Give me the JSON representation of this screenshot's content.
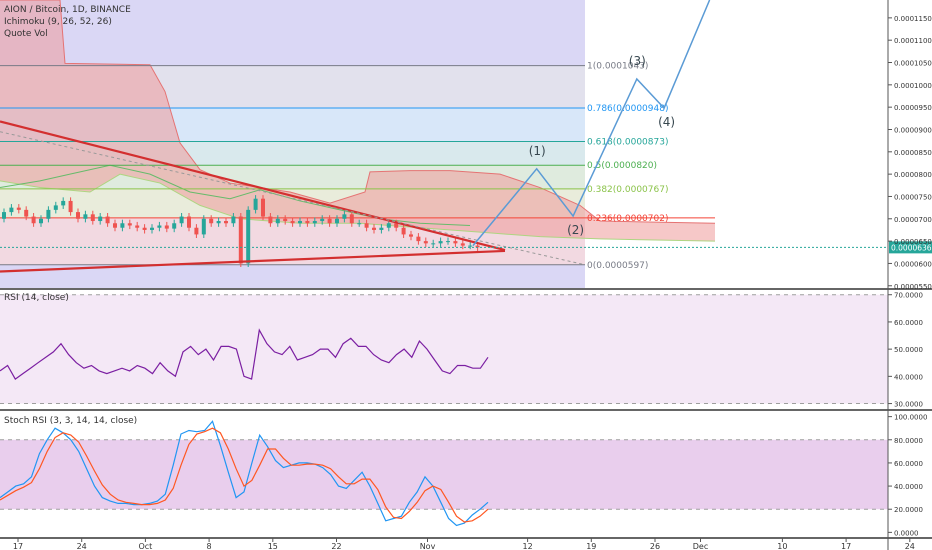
{
  "legend": {
    "symbol_line": "AION / Bitcoin, 1D, BINANCE",
    "indicator_1": "Ichimoku (9, 26, 52, 26)",
    "indicator_2": "Quote Vol"
  },
  "rsi_pane": {
    "title": "RSI (14, close)"
  },
  "stoch_pane": {
    "title": "Stoch RSI (3, 3, 14, 14, close)"
  },
  "colors": {
    "up_candle": "#26a69a",
    "down_candle": "#ef5350",
    "trendline": "#d32f2f",
    "projection": "#5b9bd5",
    "cloud_green": "#a5d6a7",
    "cloud_red": "#ef9a9a",
    "rsi": "#7b1fa2",
    "stoch_k": "#2196f3",
    "stoch_d": "#ff5722",
    "purple_band": "#b39ddb"
  },
  "chart_data": [
    {
      "type": "candlestick",
      "title": "AION / Bitcoin, 1D, BINANCE",
      "x_ticks": [
        "17",
        "24",
        "Oct",
        "8",
        "15",
        "22",
        "Nov",
        "12",
        "19",
        "26",
        "Dec",
        "10",
        "17",
        "24"
      ],
      "y_ticks": [
        "0.0001150",
        "0.0001100",
        "0.0001050",
        "0.0001000",
        "0.0000950",
        "0.0000900",
        "0.0000850",
        "0.0000800",
        "0.0000750",
        "0.0000700",
        "0.0000650",
        "0.0000600",
        "0.0000550"
      ],
      "ylim": [
        5.45e-05,
        0.000119
      ],
      "last_price_label": "0.0000636",
      "fib_levels": [
        {
          "ratio": "1",
          "price": 0.0001043,
          "label": "1(0.0001043)",
          "color": "#787b86"
        },
        {
          "ratio": "0.786",
          "price": 9.48e-05,
          "label": "0.786(0.0000948)",
          "color": "#2196f3"
        },
        {
          "ratio": "0.618",
          "price": 8.73e-05,
          "label": "0.618(0.0000873)",
          "color": "#26a69a"
        },
        {
          "ratio": "0.5",
          "price": 8.2e-05,
          "label": "0.5(0.0000820)",
          "color": "#4caf50"
        },
        {
          "ratio": "0.382",
          "price": 7.67e-05,
          "label": "0.382(0.0000767)",
          "color": "#8bc34a"
        },
        {
          "ratio": "0.236",
          "price": 7.02e-05,
          "label": "0.236(0.0000702)",
          "color": "#f44336"
        },
        {
          "ratio": "0",
          "price": 5.97e-05,
          "label": "0(0.0000597)",
          "color": "#787b86"
        }
      ],
      "wave_labels": [
        "(1)",
        "(2)",
        "(3)",
        "(4)"
      ],
      "wave_projection": [
        {
          "date": "Nov 5",
          "price": 6.4e-05
        },
        {
          "date": "Nov 12",
          "price": 8.12e-05
        },
        {
          "date": "Nov 16",
          "price": 7.06e-05
        },
        {
          "date": "Nov 23",
          "price": 0.0001013
        },
        {
          "date": "Nov 26",
          "price": 9.48e-05
        },
        {
          "date": "Dec 1",
          "price": 0.000119
        }
      ]
    },
    {
      "type": "line",
      "title": "RSI (14, close)",
      "y_ticks": [
        "70.0000",
        "60.0000",
        "50.0000",
        "40.0000",
        "30.0000"
      ],
      "ylim": [
        28,
        71
      ],
      "values": [
        42,
        44,
        39,
        41,
        43,
        45,
        47,
        49,
        52,
        48,
        45,
        43,
        44,
        42,
        41,
        42,
        43,
        42,
        44,
        43,
        41,
        45,
        42,
        40,
        49,
        51,
        48,
        50,
        46,
        51,
        51,
        50,
        40,
        39,
        57,
        52,
        49,
        48,
        51,
        46,
        47,
        48,
        50,
        50,
        47,
        52,
        54,
        51,
        51,
        48,
        46,
        45,
        48,
        50,
        47,
        53,
        50,
        46,
        42,
        41,
        44,
        44,
        43,
        43,
        47
      ]
    },
    {
      "type": "line",
      "title": "Stoch RSI (3, 3, 14, 14, close)",
      "y_ticks": [
        "100.0000",
        "80.0000",
        "60.0000",
        "40.0000",
        "20.0000",
        "0.0000"
      ],
      "ylim": [
        -4,
        104
      ],
      "band": [
        20,
        80
      ],
      "series": [
        {
          "name": "K",
          "values": [
            30,
            35,
            40,
            42,
            48,
            68,
            80,
            90,
            86,
            80,
            70,
            55,
            40,
            30,
            27,
            25,
            25,
            24,
            24,
            25,
            27,
            33,
            58,
            85,
            88,
            87,
            88,
            96,
            75,
            52,
            30,
            35,
            60,
            84,
            74,
            62,
            56,
            58,
            60,
            60,
            59,
            56,
            50,
            40,
            38,
            45,
            52,
            40,
            25,
            10,
            12,
            14,
            26,
            35,
            48,
            40,
            26,
            12,
            6,
            8,
            15,
            20,
            26
          ]
        },
        {
          "name": "D",
          "values": [
            28,
            32,
            36,
            39,
            43,
            55,
            70,
            82,
            86,
            84,
            78,
            66,
            53,
            41,
            33,
            28,
            26,
            25,
            24,
            24,
            25,
            28,
            38,
            58,
            76,
            85,
            87,
            90,
            86,
            72,
            55,
            40,
            45,
            58,
            72,
            72,
            64,
            58,
            58,
            59,
            59,
            58,
            55,
            48,
            42,
            42,
            46,
            46,
            37,
            22,
            13,
            12,
            18,
            26,
            36,
            40,
            37,
            26,
            14,
            9,
            10,
            14,
            20
          ]
        }
      ]
    }
  ]
}
